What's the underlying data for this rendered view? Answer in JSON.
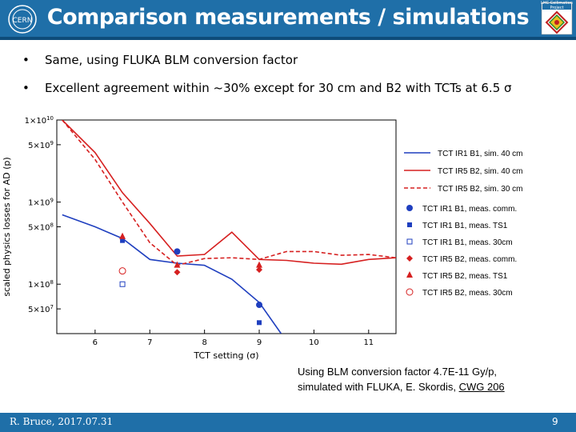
{
  "slide": {
    "title": "Comparison measurements / simulations",
    "bullets": [
      "Same, using FLUKA BLM conversion factor",
      "Excellent agreement within ~30% except for 30 cm and B2 with TCTs at 6.5 σ"
    ],
    "logo_right_text": "LHC Collimation Project",
    "caption_line1": "Using BLM conversion factor 4.7E-11 Gy/p,",
    "caption_line2_prefix": "simulated with FLUKA, E. Skordis, ",
    "caption_link": "CWG 206",
    "footer_left": "R. Bruce, 2017.07.31",
    "footer_right": "9",
    "colors": {
      "header": "#1f6fa8",
      "blue_series": "#1f3fbf",
      "red_series": "#d62020"
    }
  },
  "chart_data": {
    "type": "line",
    "xlabel": "TCT setting (σ)",
    "ylabel": "scaled physics losses for AD (p)",
    "xlim": [
      5.3,
      11.5
    ],
    "ylim": [
      25000000.0,
      10000000000.0
    ],
    "yscale": "log",
    "x_ticks": [
      "6",
      "7",
      "8",
      "9",
      "10",
      "11"
    ],
    "y_ticks": [
      "1 × 10^10",
      "5 × 10^9",
      "1 × 10^9",
      "5 × 10^8",
      "1 × 10^8",
      "5 × 10^7"
    ],
    "legend_position": "right, outside plot",
    "series": [
      {
        "name": "TCT IR1 B1, sim. 40 cm",
        "style": "line-solid",
        "color": "#1f3fbf",
        "x": [
          5.4,
          6.0,
          6.5,
          7.0,
          7.5,
          8.0,
          8.5,
          9.0,
          9.4
        ],
        "y": [
          700000000.0,
          500000000.0,
          360000000.0,
          200000000.0,
          180000000.0,
          170000000.0,
          115000000.0,
          60000000.0,
          25000000.0
        ]
      },
      {
        "name": "TCT IR5 B2, sim. 40 cm",
        "style": "line-solid",
        "color": "#d62020",
        "x": [
          5.4,
          6.0,
          6.5,
          7.0,
          7.5,
          8.0,
          8.5,
          9.0,
          9.5,
          10.0,
          10.5,
          11.0,
          11.5
        ],
        "y": [
          10000000000.0,
          4000000000.0,
          1300000000.0,
          550000000.0,
          220000000.0,
          230000000.0,
          430000000.0,
          200000000.0,
          195000000.0,
          180000000.0,
          175000000.0,
          200000000.0,
          210000000.0
        ]
      },
      {
        "name": "TCT IR5 B2, sim. 30 cm",
        "style": "line-dashed",
        "color": "#d62020",
        "x": [
          5.4,
          6.0,
          6.5,
          7.0,
          7.5,
          8.0,
          8.5,
          9.0,
          9.5,
          10.0,
          10.5,
          11.0,
          11.5
        ],
        "y": [
          10000000000.0,
          3300000000.0,
          1000000000.0,
          320000000.0,
          170000000.0,
          205000000.0,
          210000000.0,
          200000000.0,
          250000000.0,
          250000000.0,
          225000000.0,
          230000000.0,
          210000000.0
        ]
      },
      {
        "name": "TCT IR1 B1, meas. comm.",
        "style": "marker",
        "marker": "circle-filled",
        "color": "#1f3fbf",
        "x": [
          7.5,
          9.0
        ],
        "y": [
          250000000.0,
          56000000.0
        ]
      },
      {
        "name": "TCT IR1 B1, meas. TS1",
        "style": "marker",
        "marker": "square-filled",
        "color": "#1f3fbf",
        "x": [
          6.5,
          9.0
        ],
        "y": [
          340000000.0,
          34000000.0
        ]
      },
      {
        "name": "TCT IR1 B1, meas. 30cm",
        "style": "marker",
        "marker": "square-open",
        "color": "#1f3fbf",
        "x": [
          6.5
        ],
        "y": [
          100000000.0
        ]
      },
      {
        "name": "TCT IR5 B2, meas. comm.",
        "style": "marker",
        "marker": "diamond-filled",
        "color": "#d62020",
        "x": [
          7.5,
          9.0
        ],
        "y": [
          140000000.0,
          150000000.0
        ]
      },
      {
        "name": "TCT IR5 B2, meas. TS1",
        "style": "marker",
        "marker": "triangle-filled",
        "color": "#d62020",
        "x": [
          6.5,
          7.5,
          9.0
        ],
        "y": [
          380000000.0,
          170000000.0,
          170000000.0
        ]
      },
      {
        "name": "TCT IR5 B2, meas. 30cm",
        "style": "marker",
        "marker": "circle-open",
        "color": "#d62020",
        "x": [
          6.5
        ],
        "y": [
          145000000.0
        ]
      }
    ]
  }
}
